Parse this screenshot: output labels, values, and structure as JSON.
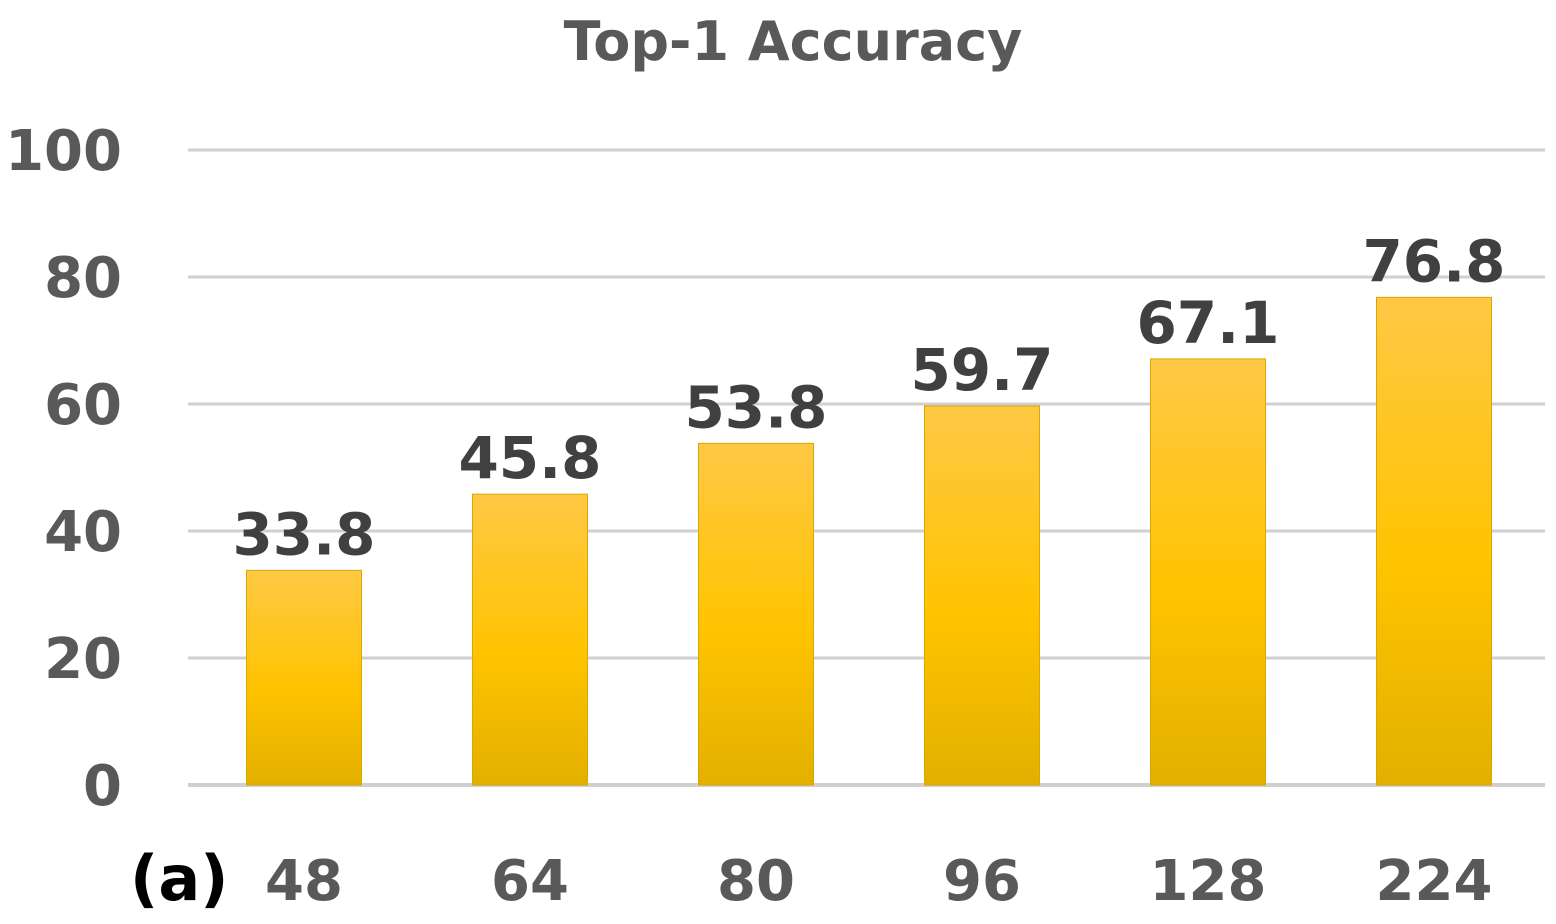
{
  "chart_data": {
    "type": "bar",
    "title": "Top-1 Accuracy",
    "panel_label": "(a)",
    "categories": [
      "48",
      "64",
      "80",
      "96",
      "128",
      "224"
    ],
    "values": [
      33.8,
      45.8,
      53.8,
      59.7,
      67.1,
      76.8
    ],
    "value_labels": [
      "33.8",
      "45.8",
      "53.8",
      "59.7",
      "67.1",
      "76.8"
    ],
    "yticks": [
      0,
      20,
      40,
      60,
      80,
      100
    ],
    "ylim": [
      0,
      100
    ],
    "xlabel": "",
    "ylabel": "",
    "grid": true,
    "legend": "none",
    "bar_color_top": "#ffc845",
    "bar_color_mid": "#ffc400",
    "bar_color_bottom": "#e3b000",
    "gridline_color": "#d0d0d0"
  }
}
